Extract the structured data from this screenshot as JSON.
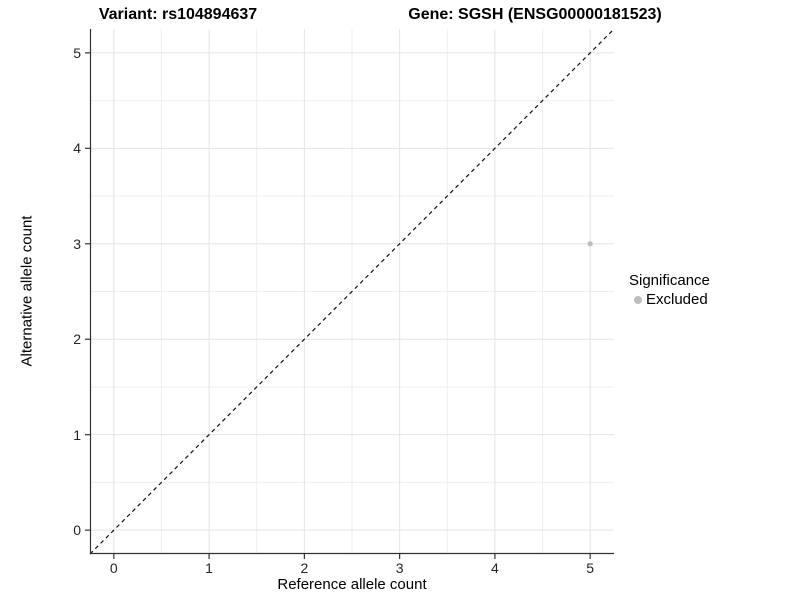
{
  "chart_data": {
    "type": "scatter",
    "title_variant": "Variant: rs104894637",
    "title_gene": "Gene: SGSH (ENSG00000181523)",
    "xlabel": "Reference allele count",
    "ylabel": "Alternative allele count",
    "xlim": [
      -0.25,
      5.25
    ],
    "ylim": [
      -0.25,
      5.25
    ],
    "xticks": [
      0,
      1,
      2,
      3,
      4,
      5
    ],
    "yticks": [
      0,
      1,
      2,
      3,
      4,
      5
    ],
    "xticks_minor": [
      0.5,
      1.5,
      2.5,
      3.5,
      4.5
    ],
    "yticks_minor": [
      0.5,
      1.5,
      2.5,
      3.5,
      4.5
    ],
    "grid": true,
    "points": [
      {
        "x": 5,
        "y": 3,
        "series": "Excluded"
      }
    ],
    "reference_line": {
      "style": "dashed",
      "from": [
        -0.25,
        -0.25
      ],
      "to": [
        5.25,
        5.25
      ],
      "description": "identity line y = x"
    },
    "legend": {
      "title": "Significance",
      "position": "right",
      "entries": [
        {
          "label": "Excluded",
          "color": "#bdbdbd"
        }
      ]
    },
    "colors": {
      "point": "#bdbdbd",
      "grid_major": "#e4e4e4",
      "grid_minor": "#efefef",
      "axis": "#333333",
      "reference_line": "#111111",
      "background": "#ffffff"
    }
  }
}
